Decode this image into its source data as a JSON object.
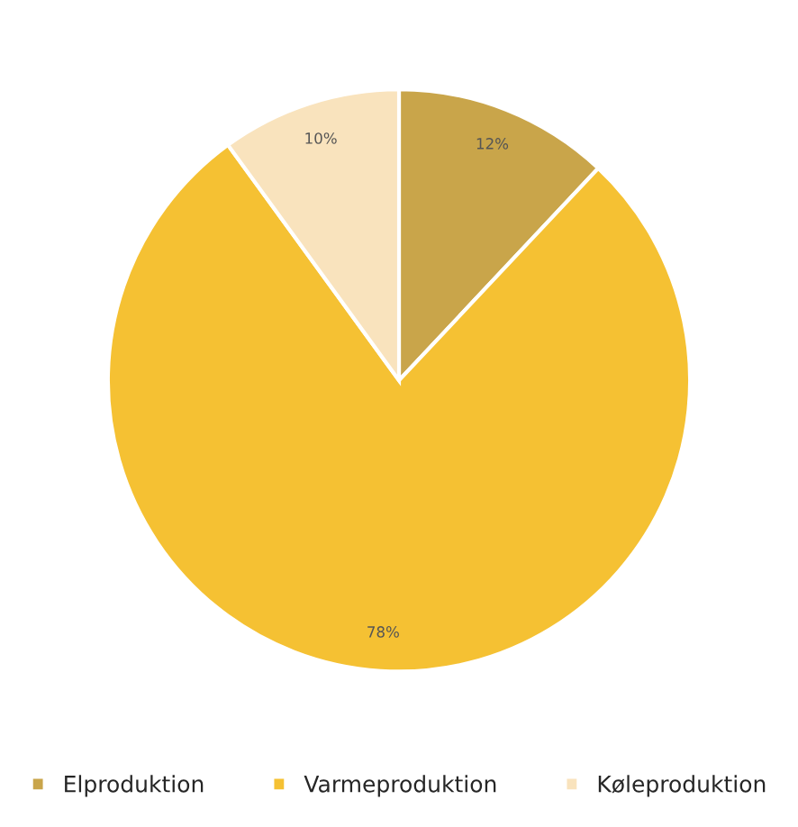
{
  "chart_data": {
    "type": "pie",
    "categories": [
      "Elproduktion",
      "Varmeproduktion",
      "Køleproduktion"
    ],
    "values": [
      12,
      78,
      10
    ],
    "colors": [
      "#c9a54a",
      "#f5c133",
      "#f9e3bd"
    ],
    "value_labels": [
      "12%",
      "78%",
      "10%"
    ],
    "legend": "bottom"
  }
}
